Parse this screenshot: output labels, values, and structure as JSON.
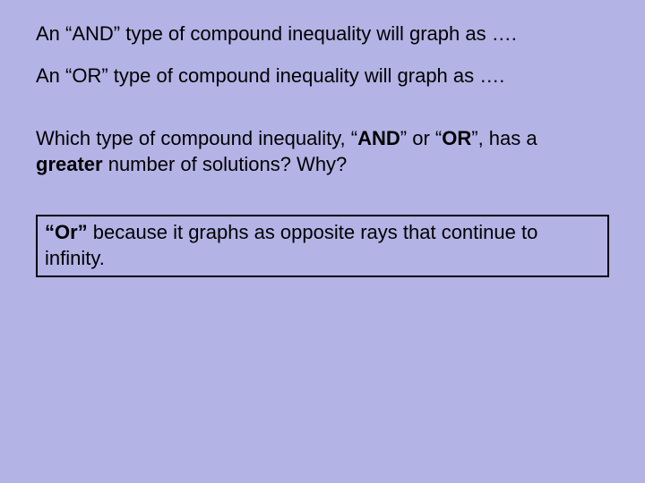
{
  "background_color": "#b3b3e6",
  "text_color": "#000000",
  "font_family": "Comic Sans MS",
  "font_size": 22,
  "line1": {
    "pre": "An “AND” type of compound inequality will graph as …."
  },
  "line2": {
    "pre": "An “OR” type of compound inequality will graph as …."
  },
  "question": {
    "part1": "Which type of compound inequality, “",
    "bold1": "AND",
    "mid1": "” or “",
    "bold2": "OR",
    "part2": "”, has a ",
    "bold3": "greater",
    "part3": " number of solutions?  Why?"
  },
  "answer": {
    "bold": "“Or”",
    "rest": " because it graphs as opposite rays that continue to infinity."
  },
  "box": {
    "border_color": "#000000",
    "border_width": 2
  }
}
